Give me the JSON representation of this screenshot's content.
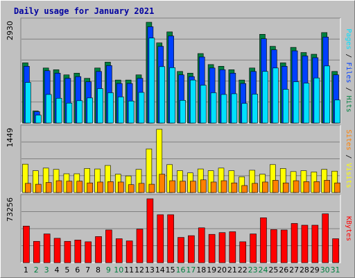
{
  "chart_data": [
    {
      "type": "bar",
      "title": "Daily usage for January 2021",
      "categories": [
        "1",
        "2",
        "3",
        "4",
        "5",
        "6",
        "7",
        "8",
        "9",
        "10",
        "11",
        "12",
        "13",
        "14",
        "15",
        "16",
        "17",
        "18",
        "19",
        "20",
        "21",
        "22",
        "23",
        "24",
        "25",
        "26",
        "27",
        "28",
        "29",
        "30",
        "31"
      ],
      "weekend_days": [
        "2",
        "3",
        "9",
        "10",
        "16",
        "17",
        "23",
        "24",
        "30",
        "31"
      ],
      "ymax_label": "2930",
      "ylim": [
        0,
        2930
      ],
      "legend": [
        "Pages",
        "Files",
        "Hits"
      ],
      "series": [
        {
          "name": "Hits",
          "color": "#008040",
          "values": [
            1750,
            350,
            1600,
            1550,
            1400,
            1450,
            1300,
            1600,
            1770,
            1250,
            1250,
            1400,
            2930,
            2330,
            2650,
            1500,
            1450,
            2020,
            1700,
            1650,
            1550,
            1250,
            1600,
            2580,
            2230,
            1750,
            2200,
            2050,
            2000,
            2630,
            1500
          ]
        },
        {
          "name": "Files",
          "color": "#0040ff",
          "values": [
            1650,
            330,
            1520,
            1450,
            1300,
            1350,
            1200,
            1500,
            1670,
            1150,
            1150,
            1300,
            2800,
            2230,
            2530,
            1400,
            1350,
            1920,
            1600,
            1550,
            1450,
            1150,
            1500,
            2450,
            2130,
            1650,
            2100,
            1950,
            1900,
            2500,
            1400
          ]
        },
        {
          "name": "Pages",
          "color": "#00e0ff",
          "values": [
            1180,
            230,
            830,
            720,
            580,
            650,
            730,
            1000,
            880,
            760,
            640,
            890,
            2470,
            1640,
            1610,
            660,
            1250,
            1100,
            880,
            830,
            850,
            570,
            840,
            1500,
            1600,
            980,
            1200,
            1160,
            1310,
            1660,
            670
          ]
        }
      ]
    },
    {
      "type": "bar",
      "ymax_label": "1449",
      "ylim": [
        0,
        1449
      ],
      "legend": [
        "Sites",
        "Visits"
      ],
      "series": [
        {
          "name": "Visits",
          "color": "#ffff00",
          "values": [
            650,
            500,
            560,
            530,
            430,
            430,
            550,
            540,
            620,
            420,
            380,
            530,
            1000,
            1449,
            640,
            500,
            450,
            540,
            500,
            560,
            500,
            360,
            510,
            420,
            640,
            550,
            480,
            500,
            470,
            530,
            490
          ]
        },
        {
          "name": "Sites",
          "color": "#ff8000",
          "values": [
            210,
            190,
            230,
            270,
            260,
            260,
            220,
            240,
            250,
            240,
            180,
            210,
            190,
            420,
            270,
            260,
            260,
            290,
            240,
            270,
            220,
            160,
            210,
            240,
            280,
            220,
            270,
            250,
            250,
            280,
            220
          ]
        }
      ]
    },
    {
      "type": "bar",
      "ymax_label": "73256",
      "ylim": [
        0,
        73256
      ],
      "legend": [
        "KBytes"
      ],
      "series": [
        {
          "name": "KBytes",
          "color": "#ff0000",
          "values": [
            42000,
            24500,
            33000,
            28000,
            24500,
            26000,
            24000,
            30000,
            37500,
            27500,
            25000,
            38500,
            73256,
            55000,
            55000,
            29000,
            31000,
            40000,
            32500,
            34500,
            35500,
            24000,
            33000,
            51500,
            38000,
            37500,
            45000,
            43000,
            43000,
            56000,
            27500
          ]
        }
      ]
    }
  ]
}
